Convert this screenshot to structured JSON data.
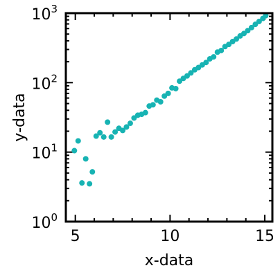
{
  "chart_data": {
    "type": "scatter",
    "xlabel": "x-data",
    "ylabel": "y-data",
    "xlim": [
      4.5,
      15.4
    ],
    "ylim": [
      1,
      1000
    ],
    "yscale": "log",
    "grid": false,
    "legend": "none",
    "marker_color": "#17b3b3",
    "x_ticks": [
      {
        "value": 5,
        "label": "5"
      },
      {
        "value": 10,
        "label": "10"
      },
      {
        "value": 15,
        "label": "15"
      }
    ],
    "y_ticks": [
      {
        "value": 1,
        "base": "10",
        "exp": "0"
      },
      {
        "value": 10,
        "base": "10",
        "exp": "1"
      },
      {
        "value": 100,
        "base": "10",
        "exp": "2"
      },
      {
        "value": 1000,
        "base": "10",
        "exp": "3"
      }
    ],
    "points": [
      {
        "x": 4.95,
        "y": 10.5
      },
      {
        "x": 5.15,
        "y": 14.5
      },
      {
        "x": 5.35,
        "y": 3.6
      },
      {
        "x": 5.55,
        "y": 8.0
      },
      {
        "x": 5.75,
        "y": 3.5
      },
      {
        "x": 5.9,
        "y": 5.2
      },
      {
        "x": 6.1,
        "y": 17
      },
      {
        "x": 6.3,
        "y": 19
      },
      {
        "x": 6.5,
        "y": 16.5
      },
      {
        "x": 6.7,
        "y": 27
      },
      {
        "x": 6.9,
        "y": 16.5
      },
      {
        "x": 7.1,
        "y": 19.5
      },
      {
        "x": 7.3,
        "y": 22
      },
      {
        "x": 7.5,
        "y": 20.5
      },
      {
        "x": 7.7,
        "y": 23
      },
      {
        "x": 7.9,
        "y": 26
      },
      {
        "x": 8.1,
        "y": 31
      },
      {
        "x": 8.3,
        "y": 34
      },
      {
        "x": 8.5,
        "y": 35
      },
      {
        "x": 8.7,
        "y": 37
      },
      {
        "x": 8.9,
        "y": 46
      },
      {
        "x": 9.1,
        "y": 48
      },
      {
        "x": 9.3,
        "y": 56
      },
      {
        "x": 9.5,
        "y": 53
      },
      {
        "x": 9.7,
        "y": 64
      },
      {
        "x": 9.9,
        "y": 70
      },
      {
        "x": 10.1,
        "y": 84
      },
      {
        "x": 10.3,
        "y": 82
      },
      {
        "x": 10.5,
        "y": 105
      },
      {
        "x": 10.7,
        "y": 115
      },
      {
        "x": 10.9,
        "y": 125
      },
      {
        "x": 11.1,
        "y": 138
      },
      {
        "x": 11.3,
        "y": 153
      },
      {
        "x": 11.5,
        "y": 165
      },
      {
        "x": 11.7,
        "y": 180
      },
      {
        "x": 11.9,
        "y": 195
      },
      {
        "x": 12.1,
        "y": 220
      },
      {
        "x": 12.3,
        "y": 235
      },
      {
        "x": 12.5,
        "y": 275
      },
      {
        "x": 12.7,
        "y": 290
      },
      {
        "x": 12.9,
        "y": 330
      },
      {
        "x": 13.1,
        "y": 355
      },
      {
        "x": 13.3,
        "y": 390
      },
      {
        "x": 13.5,
        "y": 425
      },
      {
        "x": 13.7,
        "y": 470
      },
      {
        "x": 13.9,
        "y": 510
      },
      {
        "x": 14.1,
        "y": 560
      },
      {
        "x": 14.3,
        "y": 620
      },
      {
        "x": 14.5,
        "y": 690
      },
      {
        "x": 14.7,
        "y": 760
      },
      {
        "x": 14.9,
        "y": 840
      },
      {
        "x": 15.05,
        "y": 920
      }
    ]
  }
}
